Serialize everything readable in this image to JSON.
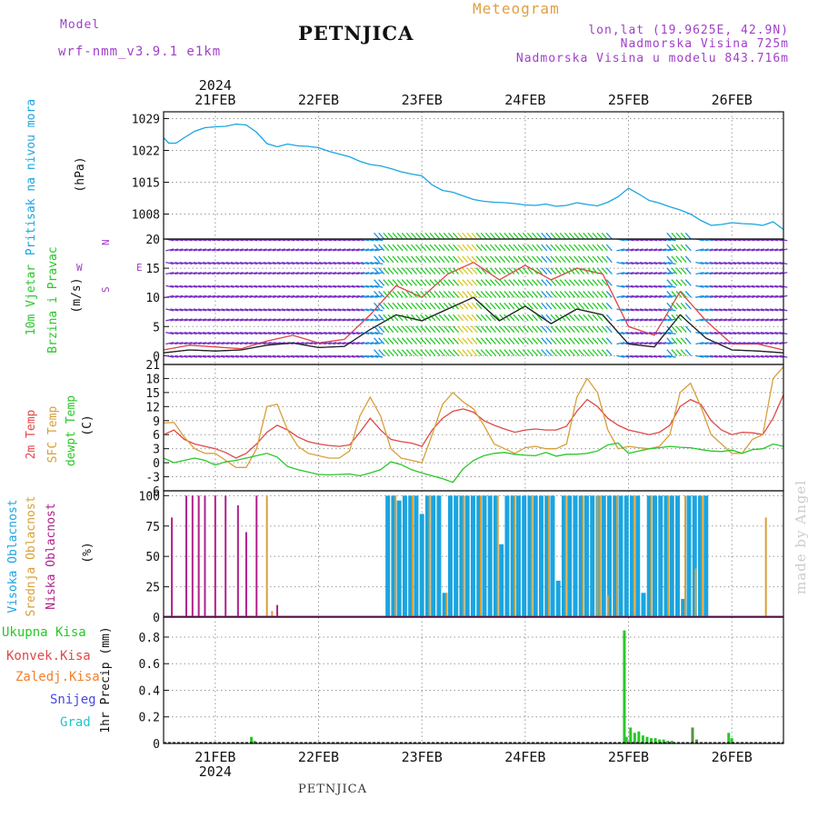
{
  "header": {
    "model_label": "Model",
    "model_name": "wrf-nmm_v3.9.1  e1km",
    "station": "PETNJICA",
    "meteogram": "Meteogram",
    "lonlat": "lon,lat (19.9625E, 42.9N)",
    "elevation": "Nadmorska Visina 725m",
    "model_elevation": "Nadmorska Visina u modelu 843.716m"
  },
  "footer": {
    "station": "PETNJICA",
    "credit": "made by Angel"
  },
  "time_axis": {
    "year": "2024",
    "labels": [
      "21FEB",
      "22FEB",
      "23FEB",
      "24FEB",
      "25FEB",
      "26FEB"
    ],
    "start_day": 20.5,
    "end_day": 26.5
  },
  "colors": {
    "pressure": "#1aa5e0",
    "temp2m": "#e04848",
    "sfc": "#d8a038",
    "dew": "#28c828",
    "high_cloud": "#1aa5e0",
    "mid_cloud": "#d8a038",
    "low_cloud": "#b0208c",
    "total_rain": "#28c828",
    "conv_rain": "#e04848",
    "frz_rain": "#f08030",
    "snow": "#4848e0",
    "hail": "#20c8c8"
  },
  "chart_data": [
    {
      "type": "line",
      "name": "pressure",
      "labels": [
        "Pritisak na nivou mora",
        "(hPa)"
      ],
      "yticks": [
        1008,
        1015,
        1022,
        1029
      ],
      "ylim": [
        1002.5,
        1030.5
      ],
      "x": [
        20.5,
        20.55,
        20.62,
        20.7,
        20.8,
        20.9,
        21.0,
        21.1,
        21.2,
        21.3,
        21.4,
        21.5,
        21.6,
        21.7,
        21.8,
        21.9,
        22.0,
        22.1,
        22.2,
        22.3,
        22.4,
        22.5,
        22.6,
        22.7,
        22.8,
        22.9,
        23.0,
        23.1,
        23.2,
        23.3,
        23.4,
        23.5,
        23.6,
        23.7,
        23.8,
        23.9,
        24.0,
        24.1,
        24.2,
        24.3,
        24.4,
        24.5,
        24.6,
        24.7,
        24.8,
        24.9,
        25.0,
        25.1,
        25.2,
        25.3,
        25.4,
        25.5,
        25.6,
        25.7,
        25.8,
        25.9,
        26.0,
        26.1,
        26.2,
        26.3,
        26.4,
        26.5
      ],
      "series": [
        {
          "color": "#1aa5e0",
          "values": [
            1024.8,
            1023.6,
            1023.6,
            1024.8,
            1026.2,
            1027.0,
            1027.2,
            1027.3,
            1027.8,
            1027.6,
            1026.0,
            1023.5,
            1022.8,
            1023.4,
            1023.0,
            1022.9,
            1022.6,
            1021.8,
            1021.2,
            1020.6,
            1019.6,
            1018.9,
            1018.6,
            1018.0,
            1017.3,
            1016.8,
            1016.4,
            1014.4,
            1013.2,
            1012.8,
            1012.0,
            1011.2,
            1010.8,
            1010.6,
            1010.5,
            1010.3,
            1010.0,
            1009.9,
            1010.2,
            1009.7,
            1009.9,
            1010.5,
            1010.1,
            1009.8,
            1010.6,
            1011.8,
            1013.7,
            1012.4,
            1011.0,
            1010.4,
            1009.6,
            1008.9,
            1008.0,
            1006.6,
            1005.5,
            1005.7,
            1006.1,
            1005.9,
            1005.8,
            1005.5,
            1006.3,
            1004.6
          ]
        }
      ]
    },
    {
      "type": "line",
      "name": "wind",
      "labels": [
        "10m Vjetar",
        "Brzina i Pravac",
        "(m/s)"
      ],
      "compass": [
        "N",
        "S",
        "W",
        "E"
      ],
      "yticks": [
        0,
        5,
        10,
        15,
        20
      ],
      "ylim": [
        -1.5,
        20
      ],
      "x": [
        20.5,
        20.75,
        21.0,
        21.25,
        21.5,
        21.75,
        22.0,
        22.25,
        22.5,
        22.75,
        23.0,
        23.25,
        23.5,
        23.75,
        24.0,
        24.25,
        24.5,
        24.75,
        25.0,
        25.25,
        25.5,
        25.75,
        26.0,
        26.25,
        26.5
      ],
      "series": [
        {
          "name": "speed",
          "color": "#222222",
          "values": [
            0.5,
            1.0,
            0.8,
            1.0,
            1.8,
            2.2,
            1.4,
            1.6,
            4.5,
            7.0,
            6.0,
            8.0,
            10.0,
            6.0,
            8.5,
            5.5,
            8.0,
            7.0,
            2.0,
            1.5,
            7.0,
            3.0,
            1.0,
            0.8,
            0.5
          ]
        },
        {
          "name": "gust",
          "color": "#e04848",
          "values": [
            1.0,
            1.8,
            1.5,
            1.2,
            2.5,
            3.5,
            2.2,
            2.8,
            7.0,
            12.0,
            10.0,
            14.0,
            16.0,
            13.0,
            15.5,
            13.0,
            15.0,
            14.0,
            5.0,
            3.5,
            11.0,
            6.0,
            2.0,
            2.0,
            1.0
          ]
        }
      ]
    },
    {
      "type": "line",
      "name": "temperature",
      "labels": [
        "2m Temp",
        "SFC Temp",
        "dewpt Temp",
        "(C)"
      ],
      "yticks": [
        -6,
        -3,
        0,
        3,
        6,
        9,
        12,
        15,
        18,
        21
      ],
      "ylim": [
        -6,
        21
      ],
      "x": [
        20.5,
        20.6,
        20.7,
        20.8,
        20.9,
        21.0,
        21.1,
        21.2,
        21.3,
        21.4,
        21.5,
        21.6,
        21.7,
        21.8,
        21.9,
        22.0,
        22.1,
        22.2,
        22.3,
        22.4,
        22.5,
        22.6,
        22.7,
        22.8,
        22.9,
        23.0,
        23.1,
        23.2,
        23.3,
        23.4,
        23.5,
        23.6,
        23.7,
        23.8,
        23.9,
        24.0,
        24.1,
        24.2,
        24.3,
        24.4,
        24.5,
        24.6,
        24.7,
        24.8,
        24.9,
        25.0,
        25.1,
        25.2,
        25.3,
        25.4,
        25.5,
        25.6,
        25.7,
        25.8,
        25.9,
        26.0,
        26.1,
        26.2,
        26.3,
        26.4,
        26.5
      ],
      "series": [
        {
          "name": "2m",
          "color": "#e04848",
          "values": [
            6,
            7,
            5,
            4,
            3.5,
            3,
            2.2,
            1,
            2,
            4,
            6.5,
            8,
            7,
            5.5,
            4.5,
            4,
            3.7,
            3.5,
            3.8,
            6.5,
            9.5,
            7,
            5,
            4.5,
            4.2,
            3.5,
            7,
            9.5,
            11,
            11.5,
            10.8,
            9,
            8,
            7.2,
            6.5,
            7,
            7.2,
            7,
            7,
            7.8,
            11,
            13.5,
            12,
            9.5,
            8,
            7,
            6.5,
            6,
            6.5,
            8,
            12,
            13.5,
            12.5,
            9,
            7,
            6,
            6.5,
            6.4,
            6,
            9.5,
            14.5
          ]
        },
        {
          "name": "SFC",
          "color": "#d8a038",
          "values": [
            8.5,
            8.6,
            5.5,
            3,
            2,
            2,
            0.5,
            -1,
            -1,
            3,
            12,
            12.5,
            7,
            3.5,
            2,
            1.5,
            1,
            1,
            2.5,
            10,
            14,
            10,
            3,
            1,
            0.5,
            0,
            6,
            12.5,
            15,
            13,
            11.5,
            8,
            4,
            3,
            2,
            3.2,
            3.5,
            3,
            3,
            4,
            14,
            18,
            15,
            7,
            3,
            3.5,
            3.2,
            3,
            3.5,
            6,
            15,
            17,
            12,
            6,
            4,
            2,
            2,
            5,
            6,
            18,
            20.5
          ]
        },
        {
          "name": "dewpt",
          "color": "#28c828",
          "values": [
            1,
            0,
            0.5,
            1,
            0.5,
            -0.5,
            0.2,
            0.5,
            1,
            1.5,
            2,
            1.2,
            -0.8,
            -1.5,
            -2,
            -2.5,
            -2.6,
            -2.5,
            -2.4,
            -2.8,
            -2.2,
            -1.5,
            0.2,
            -0.4,
            -1.5,
            -2.2,
            -2.8,
            -3.4,
            -4.2,
            -1.3,
            0.5,
            1.5,
            2,
            2.2,
            1.8,
            1.6,
            1.5,
            2.2,
            1.4,
            1.8,
            1.8,
            2,
            2.5,
            3.8,
            4.2,
            2,
            2.5,
            3,
            3.2,
            3.5,
            3.3,
            3.2,
            2.8,
            2.5,
            2.4,
            2.7,
            2,
            2.8,
            3,
            4,
            3.5
          ]
        }
      ]
    },
    {
      "type": "bar",
      "name": "cloud",
      "labels": [
        "Visoka Oblacnost",
        "Srednja Oblacnost",
        "Niska Oblacnost",
        "(%)"
      ],
      "yticks": [
        0,
        25,
        50,
        75,
        100
      ],
      "ylim": [
        0,
        104
      ],
      "low": {
        "x": [
          20.58,
          20.72,
          20.78,
          20.84,
          20.9,
          21.0,
          21.1,
          21.22,
          21.3,
          21.4,
          21.6
        ],
        "values": [
          82,
          100,
          100,
          100,
          100,
          100,
          100,
          92,
          70,
          100,
          10
        ]
      },
      "mid": {
        "x": [
          21.5,
          21.55,
          24.7,
          24.8,
          25.55,
          25.65,
          26.33
        ],
        "values": [
          100,
          5,
          100,
          18,
          100,
          40,
          82
        ]
      },
      "high": {
        "band": [
          22.67,
          25.8
        ],
        "step": 0.055,
        "values": [
          100,
          100,
          96,
          100,
          100,
          100,
          85,
          100,
          100,
          100,
          20,
          100,
          100,
          100,
          100,
          100,
          100,
          100,
          100,
          100,
          60,
          100,
          100,
          100,
          100,
          100,
          100,
          100,
          100,
          100,
          30,
          100,
          100,
          100,
          100,
          100,
          100,
          100,
          100,
          100,
          100,
          100,
          100,
          100,
          100,
          20,
          100,
          100,
          100,
          100,
          100,
          100,
          15,
          100,
          100,
          100,
          100,
          100
        ]
      }
    },
    {
      "type": "bar",
      "name": "precip",
      "labels": [
        "Ukupna Kisa",
        "Konvek.Kisa",
        "Zaledj.Kisa",
        "Snijeg",
        "Grad",
        "1hr Precip (mm)"
      ],
      "yticks": [
        0,
        0.2,
        0.4,
        0.6,
        0.8
      ],
      "ylim": [
        0,
        0.95
      ],
      "x": [
        21.35,
        21.38,
        24.96,
        24.98,
        25.02,
        25.06,
        25.1,
        25.14,
        25.18,
        25.22,
        25.26,
        25.3,
        25.34,
        25.38,
        25.42,
        25.62,
        25.66,
        25.97,
        26.0
      ],
      "values": [
        0.05,
        0.02,
        0.85,
        0.05,
        0.12,
        0.08,
        0.09,
        0.06,
        0.05,
        0.04,
        0.04,
        0.03,
        0.03,
        0.02,
        0.02,
        0.12,
        0.03,
        0.08,
        0.04
      ]
    }
  ]
}
